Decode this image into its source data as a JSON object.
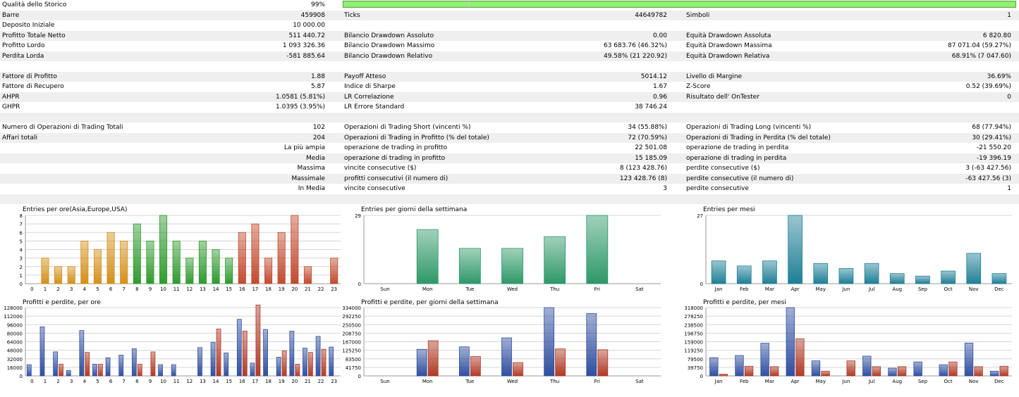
{
  "stats": {
    "quality": {
      "label": "Qualità dello Storico",
      "value": "99%",
      "fill": 1.0
    },
    "rows": [
      {
        "c1l": "Barre",
        "c1v": "459908",
        "c2l": "Ticks",
        "c2v": "44649782",
        "c3l": "Simboli",
        "c3v": "1"
      },
      {
        "c1l": "Deposito Iniziale",
        "c1v": "10 000.00",
        "c2l": "",
        "c2v": "",
        "c3l": "",
        "c3v": ""
      },
      {
        "c1l": "Profitto Totale Netto",
        "c1v": "511 440.72",
        "c2l": "Bilancio Drawdown Assoluto",
        "c2v": "0.00",
        "c3l": "Equità Drawdown Assoluta",
        "c3v": "6 820.80"
      },
      {
        "c1l": "Profitto Lordo",
        "c1v": "1 093 326.36",
        "c2l": "Bilancio Drawdown Massimo",
        "c2v": "63 683.76 (46.32%)",
        "c3l": "Equità Drawdown Massima",
        "c3v": "87 071.04 (59.27%)"
      },
      {
        "c1l": "Perdita Lorda",
        "c1v": "-581 885.64",
        "c2l": "Bilancio Drawdown Relativo",
        "c2v": "49.58% (21 220.92)",
        "c3l": "Equità Drawdown Relativa",
        "c3v": "68.91% (7 047.60)"
      },
      {
        "c1l": "",
        "c1v": "",
        "c2l": "",
        "c2v": "",
        "c3l": "",
        "c3v": ""
      },
      {
        "c1l": "Fattore di Profitto",
        "c1v": "1.88",
        "c2l": "Payoff Atteso",
        "c2v": "5014.12",
        "c3l": "Livello di Margine",
        "c3v": "36.69%"
      },
      {
        "c1l": "Fattore di Recupero",
        "c1v": "5.87",
        "c2l": "Indice di Sharpe",
        "c2v": "1.67",
        "c3l": "Z-Score",
        "c3v": "0.52 (39.69%)"
      },
      {
        "c1l": "AHPR",
        "c1v": "1.0581 (5.81%)",
        "c2l": "LR Correlazione",
        "c2v": "0.96",
        "c3l": "Risultato dell' OnTester",
        "c3v": "0"
      },
      {
        "c1l": "GHPR",
        "c1v": "1.0395 (3.95%)",
        "c2l": "LR Errore Standard",
        "c2v": "38 746.24",
        "c3l": "",
        "c3v": ""
      },
      {
        "c1l": "",
        "c1v": "",
        "c2l": "",
        "c2v": "",
        "c3l": "",
        "c3v": ""
      },
      {
        "c1l": "Numero di Operazioni di Trading Totali",
        "c1v": "102",
        "c2l": "Operazioni di Trading Short (vincenti %)",
        "c2v": "34 (55.88%)",
        "c3l": "Operazioni di Trading Long (vincenti %)",
        "c3v": "68 (77.94%)"
      },
      {
        "c1l": "Affari totali",
        "c1v": "204",
        "c2l": "Operazioni di Trading in Profitto (% del totale)",
        "c2v": "72 (70.59%)",
        "c3l": "Operazioni di Trading in Perdita (% del totale)",
        "c3v": "30 (29.41%)"
      },
      {
        "c1l": "",
        "c1v": "La più ampia",
        "c2l": "operazione de trading in profitto",
        "c2v": "22 501.08",
        "c3l": "operazione de trading in perdita",
        "c3v": "-21 550.20"
      },
      {
        "c1l": "",
        "c1v": "Media",
        "c2l": "operazione di trading in profitto",
        "c2v": "15 185.09",
        "c3l": "operazione di trading in perdita",
        "c3v": "-19 396.19"
      },
      {
        "c1l": "",
        "c1v": "Massima",
        "c2l": "vincite consecutive ($)",
        "c2v": "8 (123 428.76)",
        "c3l": "perdite consecutive ($)",
        "c3v": "3 (-63 427.56)"
      },
      {
        "c1l": "",
        "c1v": "Massimale",
        "c2l": "profitti consecutivi (il numero di)",
        "c2v": "123 428.76 (8)",
        "c3l": "perdite consecutive (il numero di)",
        "c3v": "-63 427.56 (3)"
      },
      {
        "c1l": "",
        "c1v": "In Media",
        "c2l": "vincite consecutive",
        "c2v": "3",
        "c3l": "perdite consecutive",
        "c3v": "1"
      }
    ]
  },
  "chart_data": [
    {
      "type": "bar",
      "title": "Entries per ore(Asia,Europe,USA)",
      "categories": [
        "0",
        "1",
        "2",
        "3",
        "4",
        "5",
        "6",
        "7",
        "8",
        "9",
        "10",
        "11",
        "12",
        "13",
        "14",
        "15",
        "16",
        "17",
        "18",
        "19",
        "20",
        "21",
        "22",
        "23"
      ],
      "values": [
        0,
        3,
        2,
        2,
        5,
        4,
        6,
        5,
        7,
        5,
        8,
        5,
        3,
        5,
        4,
        3,
        6,
        7,
        3,
        6,
        8,
        2,
        0,
        3
      ],
      "ylim": [
        0,
        8
      ],
      "yticks": [
        "0",
        "1",
        "2",
        "3",
        "4",
        "5",
        "6",
        "7",
        "8"
      ],
      "colors": [
        "#d4901a",
        "#d4901a",
        "#d4901a",
        "#d4901a",
        "#d4901a",
        "#d4901a",
        "#d4901a",
        "#d4901a",
        "#2f9a2f",
        "#2f9a2f",
        "#2f9a2f",
        "#2f9a2f",
        "#2f9a2f",
        "#2f9a2f",
        "#2f9a2f",
        "#2f9a2f",
        "#c24a2e",
        "#c24a2e",
        "#c24a2e",
        "#c24a2e",
        "#c24a2e",
        "#c24a2e",
        "#c24a2e",
        "#c24a2e"
      ]
    },
    {
      "type": "bar",
      "title": "Entries per giorni della settimana",
      "categories": [
        "Sun",
        "Mon",
        "Tue",
        "Wed",
        "Thu",
        "Fri",
        "Sat"
      ],
      "values": [
        0,
        23,
        15,
        15,
        20,
        29,
        0
      ],
      "ylim": [
        0,
        29
      ],
      "yticks": [
        "0",
        "29"
      ],
      "colors": [
        "#2e9868"
      ]
    },
    {
      "type": "bar",
      "title": "Entries per mesi",
      "categories": [
        "Jan",
        "Feb",
        "Mar",
        "Apr",
        "May",
        "Jun",
        "Jul",
        "Aug",
        "Sep",
        "Oct",
        "Nov",
        "Dec"
      ],
      "values": [
        9,
        7,
        9,
        27,
        8,
        6,
        8,
        4,
        3,
        5,
        12,
        4
      ],
      "ylim": [
        0,
        27
      ],
      "yticks": [
        "0",
        "27"
      ],
      "colors": [
        "#1f7f96"
      ]
    },
    {
      "type": "bar",
      "title": "Profitti e perdite, per ore",
      "categories": [
        "0",
        "1",
        "2",
        "3",
        "4",
        "5",
        "6",
        "7",
        "8",
        "9",
        "10",
        "11",
        "12",
        "13",
        "14",
        "15",
        "16",
        "17",
        "18",
        "19",
        "20",
        "21",
        "22",
        "23"
      ],
      "series": [
        {
          "values": [
            21000,
            92000,
            45000,
            10000,
            85000,
            22000,
            34000,
            39000,
            51000,
            0,
            21000,
            21000,
            0,
            53000,
            63000,
            43000,
            106000,
            24000,
            87000,
            35000,
            84000,
            52000,
            74000,
            54000
          ],
          "color": "#2f4fa0"
        },
        {
          "values": [
            0,
            0,
            22000,
            0,
            44000,
            22000,
            0,
            0,
            22000,
            45000,
            0,
            0,
            0,
            0,
            88000,
            0,
            84000,
            133000,
            0,
            47000,
            22000,
            44000,
            50000,
            0
          ],
          "color": "#b03a26"
        }
      ],
      "ylim": [
        0,
        128000
      ],
      "yticks": [
        "0",
        "16000",
        "32000",
        "48000",
        "64000",
        "80000",
        "96000",
        "112000",
        "128000"
      ]
    },
    {
      "type": "bar",
      "title": "Profitti e perdite, per giorni della settimana",
      "categories": [
        "Sun",
        "Mon",
        "Tue",
        "Wed",
        "Thu",
        "Fri",
        "Sat"
      ],
      "series": [
        {
          "values": [
            0,
            130000,
            142000,
            186000,
            334000,
            305000,
            0
          ],
          "color": "#2f4fa0"
        },
        {
          "values": [
            0,
            172000,
            95000,
            65000,
            132000,
            128000,
            0
          ],
          "color": "#b03a26"
        }
      ],
      "ylim": [
        0,
        334000
      ],
      "yticks": [
        "0",
        "41750",
        "83500",
        "125250",
        "167000",
        "208750",
        "250500",
        "292250",
        "334000"
      ]
    },
    {
      "type": "bar",
      "title": "Profitti e perdite, per mesi",
      "categories": [
        "Jan",
        "Feb",
        "Mar",
        "Apr",
        "May",
        "Jun",
        "Jul",
        "Aug",
        "Sep",
        "Oct",
        "Nov",
        "Dec"
      ],
      "series": [
        {
          "values": [
            85000,
            95000,
            152000,
            318000,
            70000,
            0,
            92000,
            36000,
            65000,
            52000,
            153000,
            22000
          ],
          "color": "#2f4fa0"
        },
        {
          "values": [
            8000,
            45000,
            43000,
            173000,
            22000,
            70000,
            43000,
            43000,
            0,
            65000,
            43000,
            45000
          ],
          "color": "#b03a26"
        }
      ],
      "ylim": [
        0,
        318000
      ],
      "yticks": [
        "0",
        "39750",
        "79500",
        "119250",
        "159000",
        "198750",
        "238500",
        "278250",
        "318000"
      ]
    }
  ]
}
